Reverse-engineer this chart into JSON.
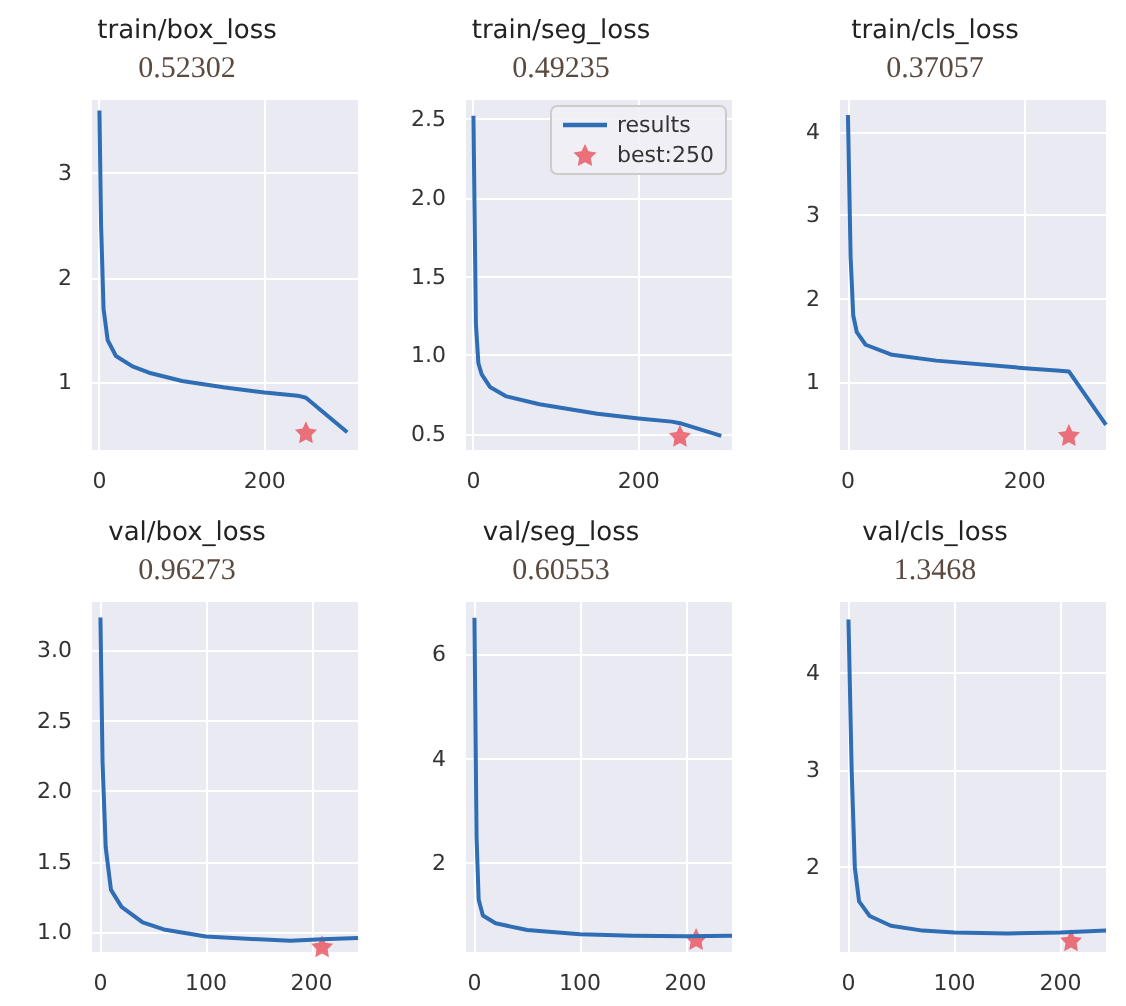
{
  "chart_data": [
    {
      "type": "line",
      "title": "train/box_loss",
      "subtitle": "0.52302",
      "xlim": [
        -9,
        313
      ],
      "ylim": [
        0.35,
        3.7
      ],
      "xticks": [
        0,
        200
      ],
      "yticks": [
        1,
        2,
        3
      ],
      "grid": true,
      "series": [
        {
          "color": "#2f6db5",
          "marker": "none",
          "x": [
            0,
            2,
            5,
            10,
            20,
            40,
            60,
            100,
            150,
            200,
            240,
            250,
            300
          ],
          "values": [
            3.6,
            2.5,
            1.7,
            1.4,
            1.25,
            1.15,
            1.09,
            1.01,
            0.95,
            0.9,
            0.87,
            0.85,
            0.52
          ]
        },
        {
          "type": "scatter",
          "color": "#e8505b",
          "marker": "star",
          "x": [
            250
          ],
          "values": [
            0.52
          ]
        }
      ]
    },
    {
      "type": "line",
      "title": "train/seg_loss",
      "subtitle": "0.49235",
      "xlim": [
        -9,
        313
      ],
      "ylim": [
        0.4,
        2.62
      ],
      "xticks": [
        0,
        200
      ],
      "yticks": [
        {
          "value": 0.5,
          "label": "0.5"
        },
        {
          "value": 1,
          "label": "1.0"
        },
        {
          "value": 1.5,
          "label": "1.5"
        },
        {
          "value": 2,
          "label": "2.0"
        },
        {
          "value": 2.5,
          "label": "2.5"
        }
      ],
      "grid": true,
      "legend": "top right",
      "series": [
        {
          "name": "results",
          "color": "#2f6db5",
          "marker": "none",
          "x": [
            0,
            3,
            6,
            10,
            20,
            40,
            80,
            150,
            200,
            240,
            250,
            300
          ],
          "values": [
            2.52,
            1.2,
            0.95,
            0.88,
            0.8,
            0.74,
            0.69,
            0.63,
            0.6,
            0.58,
            0.57,
            0.49
          ]
        },
        {
          "type": "scatter",
          "name": "best:250",
          "color": "#e8505b",
          "marker": "star",
          "x": [
            250
          ],
          "values": [
            0.49
          ]
        }
      ]
    },
    {
      "type": "line",
      "title": "train/cls_loss",
      "subtitle": "0.37057",
      "xlim": [
        -9,
        292
      ],
      "ylim": [
        0.19,
        4.38
      ],
      "xticks": [
        0,
        200
      ],
      "yticks": [
        1,
        2,
        3,
        4
      ],
      "grid": true,
      "series": [
        {
          "color": "#2f6db5",
          "marker": "none",
          "x": [
            0,
            3,
            6,
            10,
            20,
            50,
            100,
            200,
            240,
            250,
            292
          ],
          "values": [
            4.2,
            2.5,
            1.8,
            1.6,
            1.45,
            1.33,
            1.26,
            1.17,
            1.14,
            1.13,
            0.49
          ]
        },
        {
          "type": "scatter",
          "color": "#e8505b",
          "marker": "star",
          "x": [
            250
          ],
          "values": [
            0.37
          ]
        }
      ]
    },
    {
      "type": "line",
      "title": "val/box_loss",
      "subtitle": "0.96273",
      "xlim": [
        -8,
        244
      ],
      "ylim": [
        0.86,
        3.34
      ],
      "xticks": [
        0,
        100,
        200
      ],
      "yticks": [
        {
          "value": 1,
          "label": "1.0"
        },
        {
          "value": 1.5,
          "label": "1.5"
        },
        {
          "value": 2,
          "label": "2.0"
        },
        {
          "value": 2.5,
          "label": "2.5"
        },
        {
          "value": 3,
          "label": "3.0"
        }
      ],
      "grid": true,
      "series": [
        {
          "color": "#2f6db5",
          "marker": "none",
          "x": [
            0,
            2,
            5,
            10,
            20,
            40,
            60,
            100,
            150,
            180,
            210,
            244
          ],
          "values": [
            3.23,
            2.2,
            1.6,
            1.3,
            1.18,
            1.07,
            1.02,
            0.97,
            0.95,
            0.94,
            0.95,
            0.96
          ]
        },
        {
          "type": "scatter",
          "color": "#e8505b",
          "marker": "star",
          "x": [
            210
          ],
          "values": [
            0.9
          ]
        }
      ]
    },
    {
      "type": "line",
      "title": "val/seg_loss",
      "subtitle": "0.60553",
      "xlim": [
        -8,
        244
      ],
      "ylim": [
        0.3,
        7.0
      ],
      "xticks": [
        0,
        100,
        200
      ],
      "yticks": [
        2,
        4,
        6
      ],
      "grid": true,
      "series": [
        {
          "color": "#2f6db5",
          "marker": "none",
          "x": [
            0,
            2,
            4,
            8,
            20,
            50,
            100,
            150,
            200,
            244
          ],
          "values": [
            6.7,
            2.5,
            1.3,
            1.0,
            0.85,
            0.72,
            0.64,
            0.61,
            0.6,
            0.61
          ]
        },
        {
          "type": "scatter",
          "color": "#e8505b",
          "marker": "star",
          "x": [
            210
          ],
          "values": [
            0.55
          ]
        }
      ]
    },
    {
      "type": "line",
      "title": "val/cls_loss",
      "subtitle": "1.3468",
      "xlim": [
        -8,
        243
      ],
      "ylim": [
        1.13,
        4.73
      ],
      "xticks": [
        0,
        100,
        200
      ],
      "yticks": [
        2,
        3,
        4
      ],
      "grid": true,
      "series": [
        {
          "color": "#2f6db5",
          "marker": "none",
          "x": [
            0,
            3,
            6,
            10,
            20,
            40,
            70,
            100,
            150,
            200,
            243
          ],
          "values": [
            4.55,
            3.0,
            2.0,
            1.65,
            1.5,
            1.4,
            1.35,
            1.33,
            1.32,
            1.33,
            1.35
          ]
        },
        {
          "type": "scatter",
          "color": "#e8505b",
          "marker": "star",
          "x": [
            210
          ],
          "values": [
            1.25
          ]
        }
      ]
    }
  ]
}
